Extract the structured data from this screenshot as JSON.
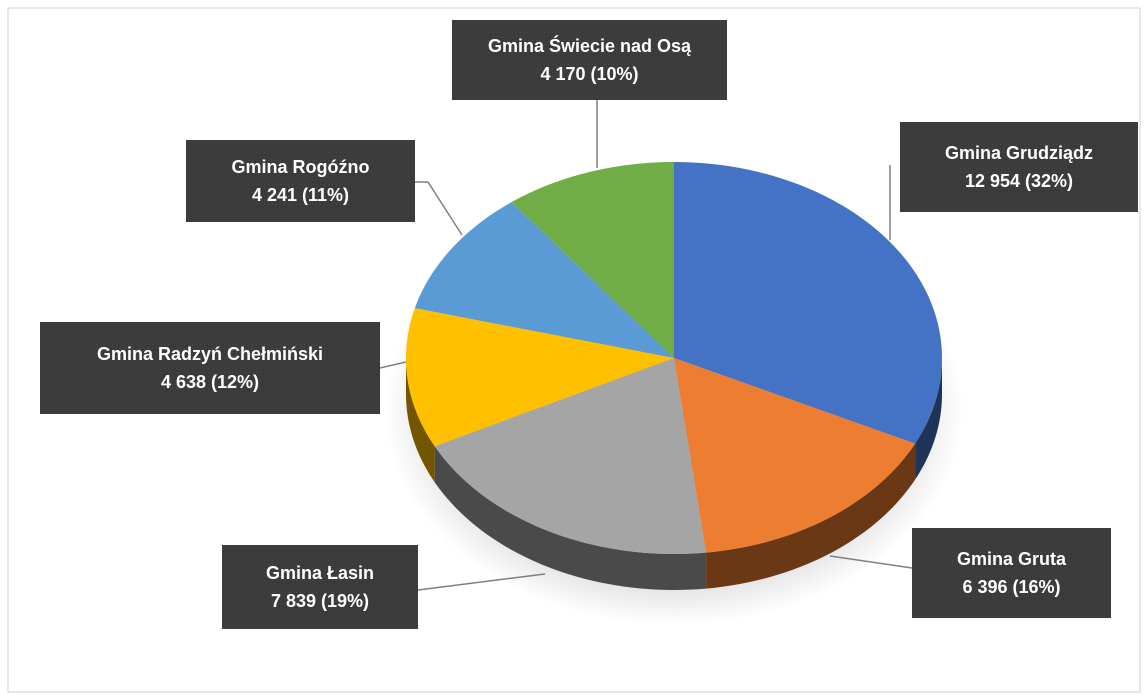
{
  "chart_data": {
    "type": "pie",
    "categories": [
      "Gmina Grudziądz",
      "Gmina Gruta",
      "Gmina Łasin",
      "Gmina Radzyń Chełmiński",
      "Gmina Rogóźno",
      "Gmina Świecie nad Osą"
    ],
    "values": [
      12954,
      6396,
      7839,
      4638,
      4241,
      4170
    ],
    "value_labels": [
      "12 954 (32%)",
      "6 396 (16%)",
      "7 839 (19%)",
      "4 638 (12%)",
      "4 241 (11%)",
      "4 170 (10%)"
    ],
    "colors": [
      "#4472c4",
      "#ed7d31",
      "#a5a5a5",
      "#ffc000",
      "#5b9bd5",
      "#70ad47"
    ]
  }
}
